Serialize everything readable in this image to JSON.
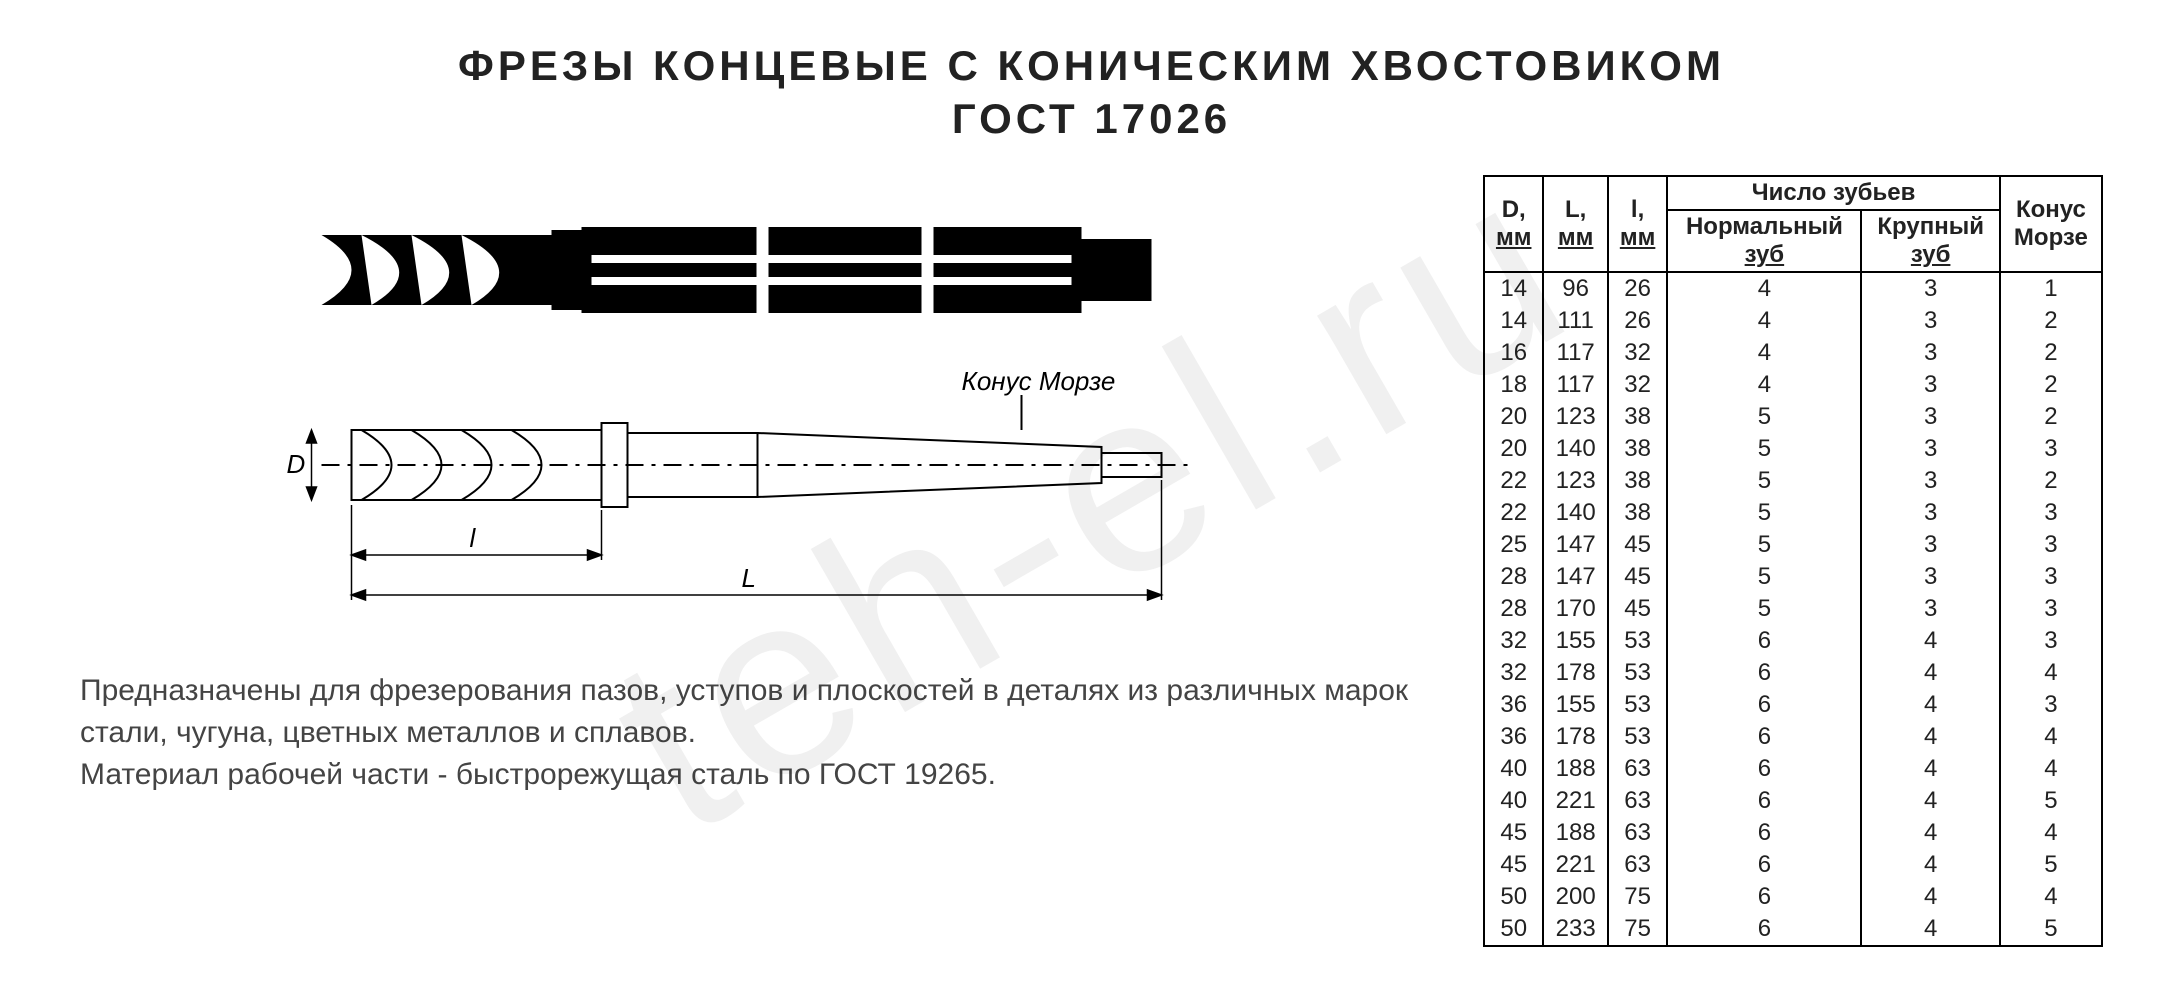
{
  "title_line1": "ФРЕЗЫ КОНЦЕВЫЕ С КОНИЧЕСКИМ ХВОСТОВИКОМ",
  "title_line2": "ГОСТ 17026",
  "watermark_text": "teh-el.ru",
  "diagram": {
    "morse_label": "Конус Морзе",
    "dim_D": "D",
    "dim_l": "l",
    "dim_L": "L",
    "colors": {
      "stroke": "#000000",
      "fill_solid": "#000000",
      "bg": "#ffffff"
    }
  },
  "description": "Предназначены для фрезерования пазов, уступов и плоскостей в деталях из различных марок стали, чугуна, цветных металлов и сплавов.\nМатериал рабочей части  - быстрорежущая сталь  по ГОСТ 19265.",
  "table": {
    "header": {
      "D": "D,",
      "D_unit": "мм",
      "L": "L,",
      "L_unit": "мм",
      "l": "l,",
      "l_unit": "мм",
      "teeth_group": "Число зубьев",
      "normal": "Нормальный",
      "normal_sub": "зуб",
      "large": "Крупный",
      "large_sub": "зуб",
      "morse": "Конус",
      "morse_sub": "Морзе"
    },
    "rows": [
      [
        "14",
        "96",
        "26",
        "4",
        "3",
        "1"
      ],
      [
        "14",
        "111",
        "26",
        "4",
        "3",
        "2"
      ],
      [
        "16",
        "117",
        "32",
        "4",
        "3",
        "2"
      ],
      [
        "18",
        "117",
        "32",
        "4",
        "3",
        "2"
      ],
      [
        "20",
        "123",
        "38",
        "5",
        "3",
        "2"
      ],
      [
        "20",
        "140",
        "38",
        "5",
        "3",
        "3"
      ],
      [
        "22",
        "123",
        "38",
        "5",
        "3",
        "2"
      ],
      [
        "22",
        "140",
        "38",
        "5",
        "3",
        "3"
      ],
      [
        "25",
        "147",
        "45",
        "5",
        "3",
        "3"
      ],
      [
        "28",
        "147",
        "45",
        "5",
        "3",
        "3"
      ],
      [
        "28",
        "170",
        "45",
        "5",
        "3",
        "3"
      ],
      [
        "32",
        "155",
        "53",
        "6",
        "4",
        "3"
      ],
      [
        "32",
        "178",
        "53",
        "6",
        "4",
        "4"
      ],
      [
        "36",
        "155",
        "53",
        "6",
        "4",
        "3"
      ],
      [
        "36",
        "178",
        "53",
        "6",
        "4",
        "4"
      ],
      [
        "40",
        "188",
        "63",
        "6",
        "4",
        "4"
      ],
      [
        "40",
        "221",
        "63",
        "6",
        "4",
        "5"
      ],
      [
        "45",
        "188",
        "63",
        "6",
        "4",
        "4"
      ],
      [
        "45",
        "221",
        "63",
        "6",
        "4",
        "5"
      ],
      [
        "50",
        "200",
        "75",
        "6",
        "4",
        "4"
      ],
      [
        "50",
        "233",
        "75",
        "6",
        "4",
        "5"
      ]
    ]
  }
}
